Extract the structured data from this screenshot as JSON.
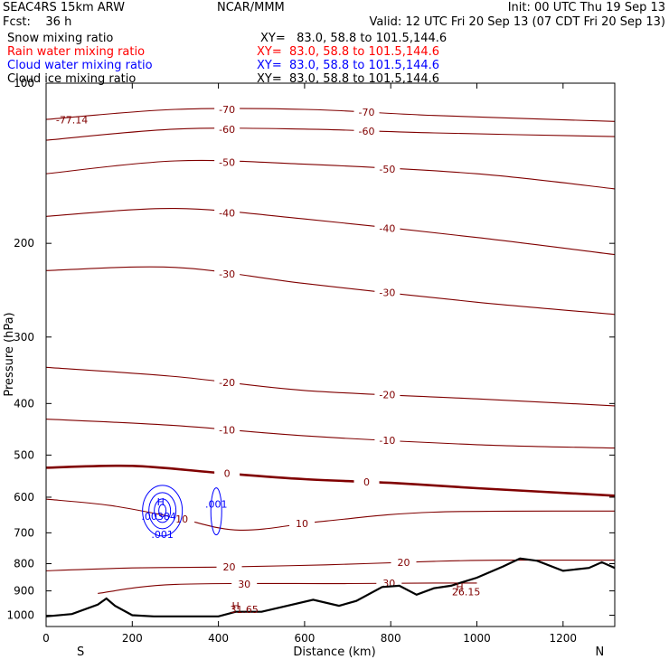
{
  "header": {
    "model": "SEAC4RS 15km ARW",
    "org": "NCAR/MMM",
    "init": "Init: 00 UTC Thu 19 Sep 13",
    "fcst": "Fcst:    36 h",
    "valid": "Valid: 12 UTC Fri 20 Sep 13 (07 CDT Fri 20 Sep 13)"
  },
  "fields": [
    {
      "name": "Snow mixing ratio",
      "xy": "XY=   83.0, 58.8 to 101.5,144.6",
      "color": "#000000"
    },
    {
      "name": "Rain water mixing ratio",
      "xy": "XY=  83.0, 58.8 to 101.5,144.6",
      "color": "#ff0000"
    },
    {
      "name": "Cloud water mixing ratio",
      "xy": "XY=  83.0, 58.8 to 101.5,144.6",
      "color": "#0000ff"
    },
    {
      "name": "Cloud ice mixing ratio",
      "xy": "XY=  83.0, 58.8 to 101.5,144.6",
      "color": "#000000"
    }
  ],
  "colors": {
    "isotherm": "#800000",
    "cloud_water": "#0000ff",
    "terrain": "#000000"
  },
  "chart_data": {
    "type": "contour-cross-section",
    "xlabel": "Distance (km)",
    "ylabel": "Pressure (hPa)",
    "xlim": [
      0,
      1320
    ],
    "ylim": [
      1050,
      100
    ],
    "y_scale": "log",
    "x_ticks": [
      0,
      200,
      400,
      600,
      800,
      1000,
      1200
    ],
    "y_ticks": [
      100,
      200,
      300,
      400,
      500,
      600,
      700,
      800,
      900,
      1000
    ],
    "end_labels": {
      "left": "S",
      "right": "N"
    },
    "isotherms": [
      {
        "label": "-70",
        "points": [
          [
            0,
            117
          ],
          [
            300,
            112
          ],
          [
            600,
            112
          ],
          [
            900,
            115
          ],
          [
            1320,
            118
          ]
        ]
      },
      {
        "label": "-60",
        "points": [
          [
            0,
            128
          ],
          [
            300,
            122
          ],
          [
            600,
            122
          ],
          [
            900,
            124
          ],
          [
            1320,
            126
          ]
        ]
      },
      {
        "label": "-50",
        "points": [
          [
            0,
            148
          ],
          [
            300,
            140
          ],
          [
            600,
            142
          ],
          [
            1000,
            148
          ],
          [
            1320,
            158
          ]
        ]
      },
      {
        "label": "-40",
        "points": [
          [
            0,
            178
          ],
          [
            300,
            172
          ],
          [
            600,
            180
          ],
          [
            1000,
            195
          ],
          [
            1320,
            210
          ]
        ]
      },
      {
        "label": "-30",
        "points": [
          [
            0,
            225
          ],
          [
            300,
            222
          ],
          [
            600,
            238
          ],
          [
            1000,
            258
          ],
          [
            1320,
            272
          ]
        ]
      },
      {
        "label": "-20",
        "points": [
          [
            0,
            342
          ],
          [
            300,
            356
          ],
          [
            600,
            378
          ],
          [
            1000,
            392
          ],
          [
            1320,
            404
          ]
        ]
      },
      {
        "label": "-10",
        "points": [
          [
            0,
            428
          ],
          [
            300,
            440
          ],
          [
            600,
            460
          ],
          [
            1000,
            478
          ],
          [
            1320,
            485
          ]
        ]
      },
      {
        "label": "0",
        "points": [
          [
            0,
            528
          ],
          [
            200,
            524
          ],
          [
            400,
            540
          ],
          [
            600,
            555
          ],
          [
            800,
            564
          ],
          [
            1000,
            577
          ],
          [
            1320,
            596
          ]
        ],
        "bold": true
      },
      {
        "label": "10",
        "points": [
          [
            0,
            605
          ],
          [
            150,
            622
          ],
          [
            300,
            655
          ],
          [
            450,
            692
          ],
          [
            650,
            665
          ],
          [
            900,
            640
          ],
          [
            1320,
            637
          ]
        ]
      },
      {
        "label": "20",
        "points": [
          [
            0,
            825
          ],
          [
            200,
            815
          ],
          [
            400,
            812
          ],
          [
            650,
            804
          ],
          [
            900,
            792
          ],
          [
            1060,
            788
          ],
          [
            1320,
            788
          ]
        ]
      },
      {
        "label": "30",
        "points": [
          [
            120,
            910
          ],
          [
            300,
            875
          ],
          [
            700,
            872
          ],
          [
            900,
            870
          ],
          [
            1000,
            870
          ]
        ]
      }
    ],
    "terrain": [
      [
        0,
        1005
      ],
      [
        60,
        995
      ],
      [
        120,
        955
      ],
      [
        140,
        930
      ],
      [
        160,
        960
      ],
      [
        200,
        1000
      ],
      [
        250,
        1005
      ],
      [
        400,
        1005
      ],
      [
        440,
        985
      ],
      [
        500,
        985
      ],
      [
        560,
        960
      ],
      [
        620,
        935
      ],
      [
        680,
        960
      ],
      [
        720,
        940
      ],
      [
        780,
        885
      ],
      [
        820,
        880
      ],
      [
        860,
        915
      ],
      [
        900,
        890
      ],
      [
        940,
        880
      ],
      [
        1000,
        850
      ],
      [
        1060,
        810
      ],
      [
        1100,
        782
      ],
      [
        1140,
        790
      ],
      [
        1200,
        825
      ],
      [
        1260,
        815
      ],
      [
        1290,
        795
      ],
      [
        1320,
        815
      ]
    ],
    "cloud_water": {
      "label": ".001",
      "centers": [
        [
          270,
          636
        ],
        [
          395,
          638
        ]
      ],
      "max_label": ".00384",
      "max_marker": "H"
    },
    "annotations": [
      {
        "text": "-77.14",
        "x": 60,
        "y": 119
      },
      {
        "text": "31.65",
        "x": 460,
        "y": 990
      },
      {
        "text": "26.15",
        "x": 975,
        "y": 918
      },
      {
        "text": "H",
        "x": 440,
        "y": 975
      },
      {
        "text": "H",
        "x": 960,
        "y": 898
      }
    ]
  }
}
